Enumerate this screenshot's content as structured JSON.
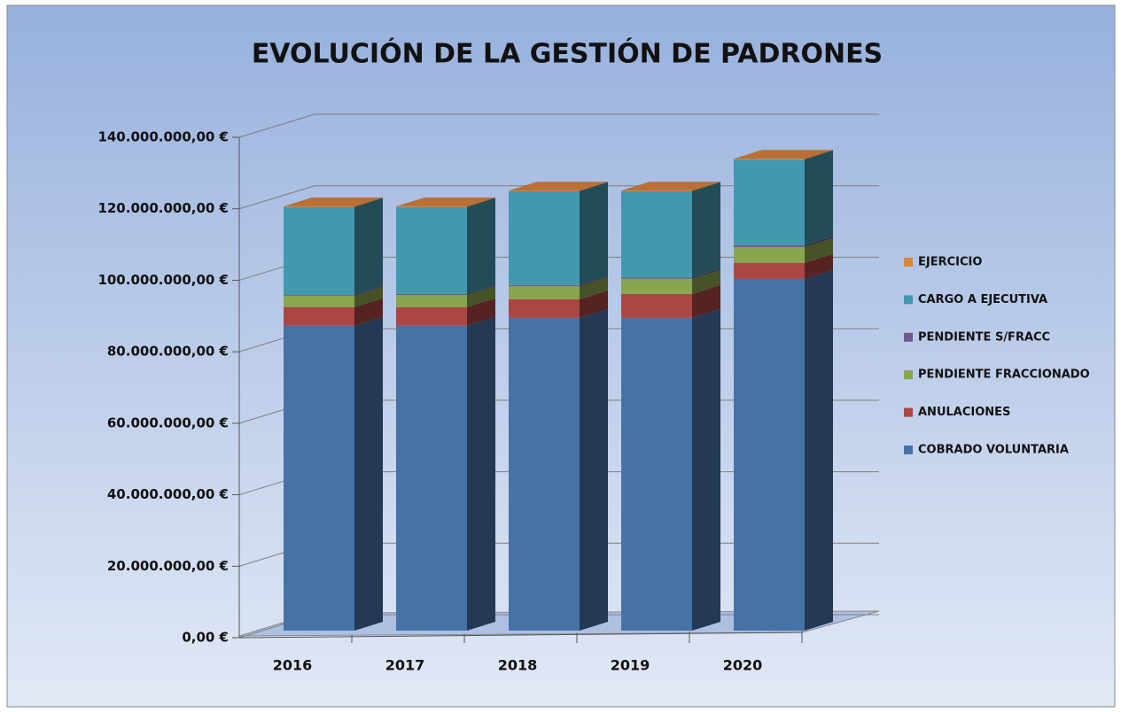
{
  "chart_data": {
    "type": "bar3d_stacked",
    "title": "EVOLUCIÓN DE LA GESTIÓN DE PADRONES",
    "categories": [
      "2016",
      "2017",
      "2018",
      "2019",
      "2020"
    ],
    "series": [
      {
        "name": "COBRADO VOLUNTARIA",
        "color": "#4572a7",
        "values": [
          85300000,
          85300000,
          87500000,
          87500000,
          98400000
        ]
      },
      {
        "name": "ANULACIONES",
        "color": "#aa4643",
        "values": [
          5200000,
          5200000,
          5200000,
          6700000,
          4500000
        ]
      },
      {
        "name": "PENDIENTE FRACCIONADO",
        "color": "#89a54e",
        "values": [
          3200000,
          3400000,
          3700000,
          4200000,
          4400000
        ]
      },
      {
        "name": "PENDIENTE S/FRACC",
        "color": "#71588f",
        "values": [
          300000,
          300000,
          300000,
          400000,
          500000
        ]
      },
      {
        "name": "CARGO A EJECUTIVA",
        "color": "#4198af",
        "values": [
          24500000,
          24300000,
          26200000,
          24100000,
          24000000
        ]
      },
      {
        "name": "EJERCICIO",
        "color": "#db843d",
        "values": [
          200000,
          200000,
          200000,
          200000,
          200000
        ]
      }
    ],
    "ylim": [
      0,
      140000000
    ],
    "yticks": [
      {
        "value": 0,
        "label": "0,00 €"
      },
      {
        "value": 20000000,
        "label": "20.000.000,00 €"
      },
      {
        "value": 40000000,
        "label": "40.000.000,00 €"
      },
      {
        "value": 60000000,
        "label": "60.000.000,00 €"
      },
      {
        "value": 80000000,
        "label": "80.000.000,00 €"
      },
      {
        "value": 100000000,
        "label": "100.000.000,00 €"
      },
      {
        "value": 120000000,
        "label": "120.000.000,00 €"
      },
      {
        "value": 140000000,
        "label": "140.000.000,00 €"
      }
    ],
    "grid": true,
    "legend": "right"
  }
}
